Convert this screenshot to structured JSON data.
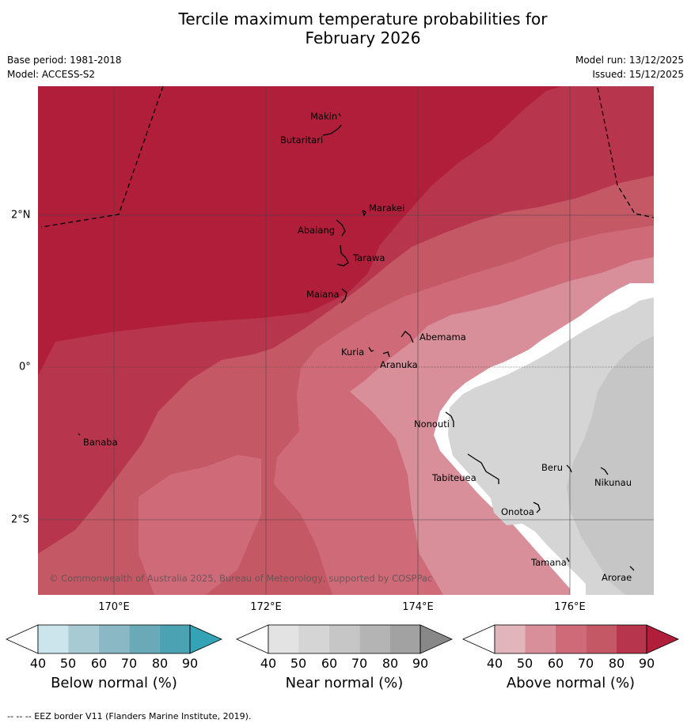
{
  "title_line1": "Tercile maximum temperature probabilities for",
  "title_line2": "February 2026",
  "base_period": "Base period: 1981-2018",
  "model": "Model: ACCESS-S2",
  "model_run": "Model run: 13/12/2025",
  "issued": "Issued: 15/12/2025",
  "axes": {
    "lon_labels": [
      "170°E",
      "172°E",
      "174°E",
      "176°E"
    ],
    "lat_labels": [
      "2°N",
      "0°",
      "2°S"
    ]
  },
  "places": [
    {
      "name": "Makin"
    },
    {
      "name": "Butaritari"
    },
    {
      "name": "Marakei"
    },
    {
      "name": "Abaiang"
    },
    {
      "name": "Tarawa"
    },
    {
      "name": "Maiana"
    },
    {
      "name": "Abemama"
    },
    {
      "name": "Kuria"
    },
    {
      "name": "Aranuka"
    },
    {
      "name": "Banaba"
    },
    {
      "name": "Nonouti"
    },
    {
      "name": "Tabiteuea"
    },
    {
      "name": "Beru"
    },
    {
      "name": "Nikunau"
    },
    {
      "name": "Onotoa"
    },
    {
      "name": "Tamana"
    },
    {
      "name": "Arorae"
    }
  ],
  "copyright": "© Commonwealth of Australia 2025, Bureau of Meteorology, supported by COSPPac",
  "colorbars": [
    {
      "label": "Below normal (%)",
      "ticks": [
        "40",
        "50",
        "60",
        "70",
        "80",
        "90"
      ],
      "colors": [
        "#ffffff",
        "#cce4eb",
        "#a8cad2",
        "#8ab9c5",
        "#6aaab8",
        "#4aa2b2",
        "#33a3b5"
      ]
    },
    {
      "label": "Near normal (%)",
      "ticks": [
        "40",
        "50",
        "60",
        "70",
        "80",
        "90"
      ],
      "colors": [
        "#ffffff",
        "#e3e3e3",
        "#d5d5d5",
        "#c6c6c6",
        "#b4b4b4",
        "#a2a2a2",
        "#888888"
      ]
    },
    {
      "label": "Above normal (%)",
      "ticks": [
        "40",
        "50",
        "60",
        "70",
        "80",
        "90"
      ],
      "colors": [
        "#ffffff",
        "#e2b4bc",
        "#d88f9a",
        "#cf6a78",
        "#c55865",
        "#b8364d",
        "#b01e3a"
      ]
    }
  ],
  "footer": "-- -- -- EEZ border V11 (Flanders Marine Institute, 2019)."
}
